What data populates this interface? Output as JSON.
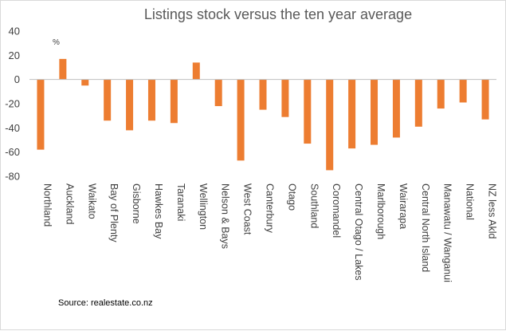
{
  "chart_data": {
    "type": "bar",
    "title": "Listings stock versus the ten year average",
    "unit_label": "%",
    "source": "Source: realestate.co.nz",
    "ylim": [
      -80,
      40
    ],
    "yticks": [
      40,
      20,
      0,
      -20,
      -40,
      -60,
      -80
    ],
    "grid": false,
    "bar_color": "#ED7D31",
    "categories": [
      "Northland",
      "Auckland",
      "Waikato",
      "Bay of Plenty",
      "Gisborne",
      "Hawkes Bay",
      "Taranaki",
      "Wellington",
      "Nelson & Bays",
      "West Coast",
      "Canterbury",
      "Otago",
      "Southland",
      "Coromandel",
      "Central Otago / Lakes",
      "Marlborough",
      "Wairarapa",
      "Central North Island",
      "Manawatu / Wanganui",
      "National",
      "NZ less Akld"
    ],
    "values": [
      -58,
      17,
      -5,
      -34,
      -42,
      -34,
      -36,
      14,
      -22,
      -67,
      -25,
      -31,
      -53,
      -75,
      -57,
      -54,
      -48,
      -39,
      -24,
      -19,
      -33
    ]
  }
}
